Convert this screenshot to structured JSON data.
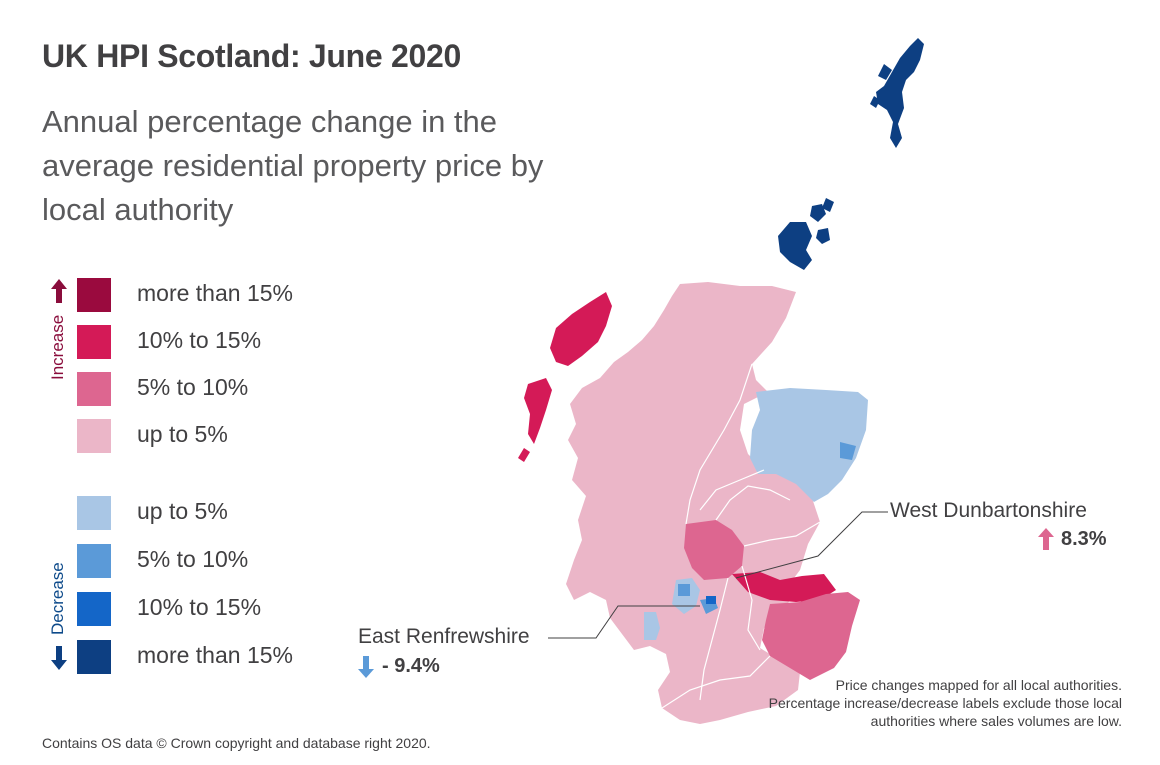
{
  "title": "UK HPI Scotland: June 2020",
  "subtitle": "Annual percentage change in the average residential property price by local authority",
  "legend": {
    "increase_label": "Increase",
    "decrease_label": "Decrease",
    "increase": [
      {
        "label": "more than 15%",
        "color": "#9a0a3e"
      },
      {
        "label": "10% to 15%",
        "color": "#d41a57"
      },
      {
        "label": "5% to 10%",
        "color": "#dd6690"
      },
      {
        "label": "up to 5%",
        "color": "#ebb6c8"
      }
    ],
    "decrease": [
      {
        "label": "up to 5%",
        "color": "#a9c6e5"
      },
      {
        "label": "5% to 10%",
        "color": "#5b9ad8"
      },
      {
        "label": "10% to 15%",
        "color": "#1466c8"
      },
      {
        "label": "more than 15%",
        "color": "#0d3f82"
      }
    ]
  },
  "callouts": {
    "west_dunbartonshire": {
      "name": "West Dunbartonshire",
      "value": "8.3%",
      "direction": "increase"
    },
    "east_renfrewshire": {
      "name": "East Renfrewshire",
      "value": "- 9.4%",
      "direction": "decrease"
    }
  },
  "footer": {
    "source": "Contains OS data © Crown copyright and database right 2020.",
    "note": "Price changes mapped for all local authorities. Percentage increase/decrease labels exclude those local authorities where sales volumes are low."
  }
}
